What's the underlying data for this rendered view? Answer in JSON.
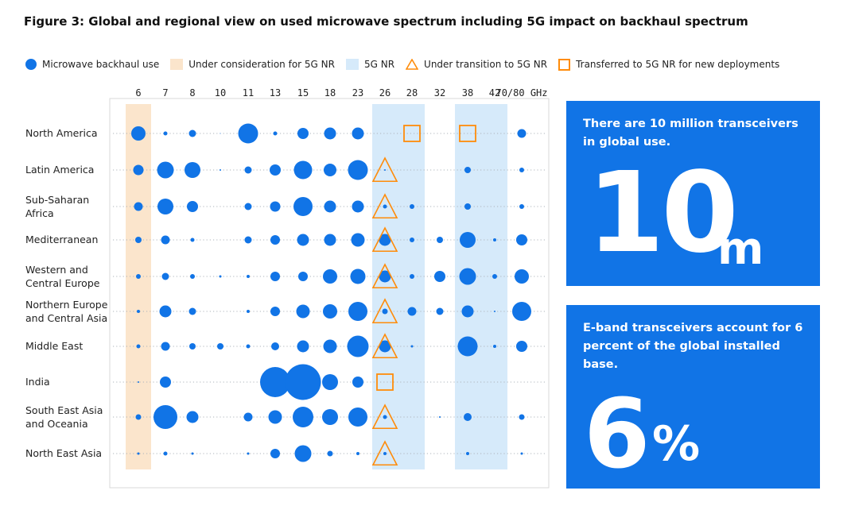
{
  "title": "Figure 3: Global and regional view on used microwave spectrum including 5G impact on backhaul spectrum",
  "legend": [
    {
      "label": "Microwave backhaul use",
      "icon": "dot-icon"
    },
    {
      "label": "Under consideration for 5G NR",
      "icon": "peach-band-icon"
    },
    {
      "label": "5G NR",
      "icon": "blue-band-icon"
    },
    {
      "label": "Under transition to 5G NR",
      "icon": "triangle-icon"
    },
    {
      "label": "Transferred to 5G NR for new deployments",
      "icon": "square-icon"
    }
  ],
  "colors": {
    "dot": "#1174e6",
    "orange": "#ff8c0a",
    "peach": "#fbe5cc",
    "light_blue": "#d6eafa",
    "panel": "#1174e6"
  },
  "panel_1": {
    "text": "There are 10 million transceivers in global use.",
    "big_number": "10",
    "unit": "m"
  },
  "panel_2": {
    "text": "E-band transceivers account for 6 percent of the global installed base.",
    "big_number": "6",
    "unit": "%"
  },
  "chart_data": {
    "type": "scatter",
    "title": "Figure 3: Global and regional view on used microwave spectrum including 5G impact on backhaul spectrum",
    "x_categories": [
      "6",
      "7",
      "8",
      "10",
      "11",
      "13",
      "15",
      "18",
      "23",
      "26",
      "28",
      "32",
      "38",
      "42",
      "70/80 GHz"
    ],
    "y_categories": [
      "North America",
      "Latin America",
      "Sub-Saharan Africa",
      "Mediterranean",
      "Western and Central Europe",
      "Northern Europe and Central Asia",
      "Middle East",
      "India",
      "South East Asia and Oceania",
      "North East Asia"
    ],
    "value_meaning": "relative bubble size of microwave backhaul use (0-10 scale, estimated from bubble diameter)",
    "values": [
      [
        18,
        5,
        9,
        1,
        25,
        5,
        14,
        15,
        15,
        0,
        0,
        0,
        0,
        0,
        11
      ],
      [
        13,
        21,
        20,
        2,
        9,
        14,
        23,
        16,
        25,
        2,
        0,
        0,
        8,
        0,
        6
      ],
      [
        11,
        20,
        14,
        0,
        9,
        13,
        24,
        15,
        15,
        5,
        6,
        0,
        8,
        0,
        6
      ],
      [
        8,
        11,
        5,
        0,
        9,
        12,
        15,
        15,
        17,
        15,
        6,
        8,
        20,
        4,
        14
      ],
      [
        6,
        9,
        6,
        3,
        4,
        12,
        12,
        18,
        19,
        15,
        6,
        14,
        21,
        6,
        18
      ],
      [
        4,
        15,
        9,
        0,
        4,
        12,
        17,
        18,
        24,
        7,
        11,
        9,
        15,
        2,
        24
      ],
      [
        5,
        11,
        8,
        8,
        5,
        10,
        15,
        17,
        27,
        15,
        3,
        0,
        25,
        4,
        14
      ],
      [
        2,
        14,
        0,
        0,
        0,
        38,
        45,
        20,
        14,
        0,
        0,
        0,
        0,
        0,
        0
      ],
      [
        7,
        30,
        15,
        0,
        11,
        17,
        26,
        20,
        24,
        5,
        0,
        2,
        10,
        0,
        7
      ],
      [
        3,
        5,
        3,
        0,
        3,
        12,
        21,
        7,
        4,
        4,
        0,
        0,
        4,
        0,
        3
      ]
    ],
    "status_5g": {
      "under_consideration_for_5g_nr": [
        "6"
      ],
      "5g_nr": [
        "26",
        "28",
        "38",
        "42"
      ],
      "under_transition_to_5g_nr": [
        [
          "Latin America",
          "26"
        ],
        [
          "Sub-Saharan Africa",
          "26"
        ],
        [
          "Mediterranean",
          "26"
        ],
        [
          "Western and Central Europe",
          "26"
        ],
        [
          "Northern Europe and Central Asia",
          "26"
        ],
        [
          "Middle East",
          "26"
        ],
        [
          "South East Asia and Oceania",
          "26"
        ],
        [
          "North East Asia",
          "26"
        ]
      ],
      "transferred_to_5g_nr_for_new_deployments": [
        [
          "North America",
          "28"
        ],
        [
          "North America",
          "38"
        ],
        [
          "India",
          "26"
        ]
      ]
    },
    "grid": true,
    "legend_position": "top"
  }
}
